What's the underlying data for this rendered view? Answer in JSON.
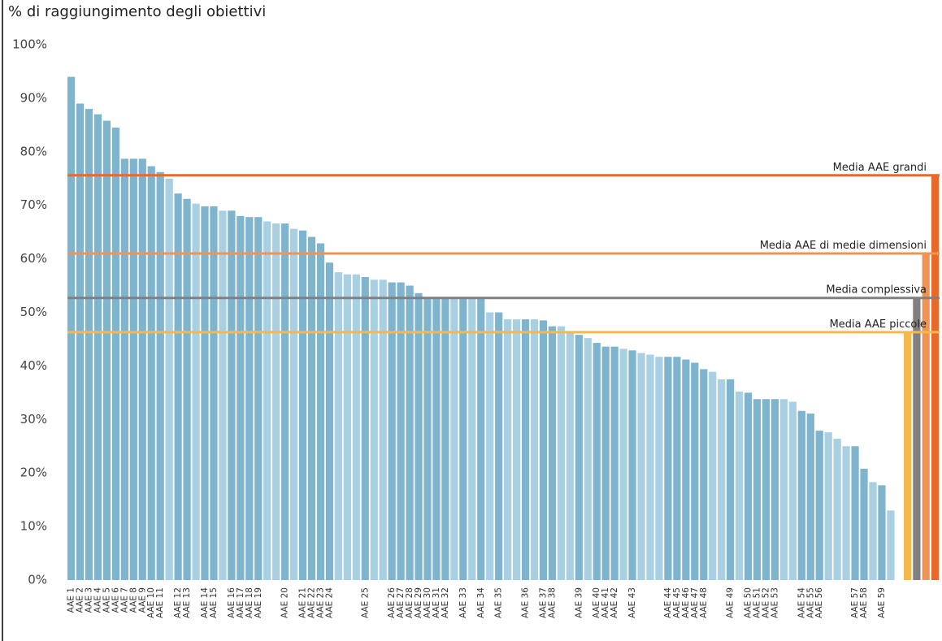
{
  "chart_data": {
    "type": "bar",
    "title": "% di raggiungimento degli obiettivi",
    "categories": [
      "AAE 1",
      "AAE 2",
      "AAE 3",
      "AAE 4",
      "AAE 5",
      "AAE 6",
      "AAE 7",
      "AAE 8",
      "AAE 9",
      "AAE 10",
      "AAE 11",
      null,
      "AAE 12",
      "AAE 13",
      null,
      "AAE 14",
      "AAE 15",
      null,
      "AAE 16",
      "AAE 17",
      "AAE 18",
      "AAE 19",
      null,
      null,
      "AAE 20",
      null,
      "AAE 21",
      "AAE 22",
      "AAE 23",
      "AAE 24",
      null,
      null,
      null,
      "AAE 25",
      null,
      null,
      "AAE 26",
      "AAE 27",
      "AAE 28",
      "AAE 29",
      "AAE 30",
      "AAE 31",
      "AAE 32",
      null,
      "AAE 33",
      null,
      "AAE 34",
      null,
      "AAE 35",
      null,
      null,
      "AAE 36",
      null,
      "AAE 37",
      "AAE 38",
      null,
      null,
      "AAE 39",
      null,
      "AAE 40",
      "AAE 41",
      "AAE 42",
      null,
      "AAE 43",
      null,
      null,
      null,
      "AAE 44",
      "AAE 45",
      "AAE 46",
      "AAE 47",
      "AAE 48",
      null,
      null,
      "AAE 49",
      null,
      "AAE 50",
      "AAE 51",
      "AAE 52",
      "AAE 53",
      null,
      null,
      "AAE 54",
      "AAE 55",
      "AAE 56",
      null,
      null,
      null,
      "AAE 57",
      "AAE 58",
      null,
      "AAE 59",
      null
    ],
    "values": [
      94,
      89,
      88,
      87,
      85.8,
      84.5,
      78.7,
      78.7,
      78.7,
      77.3,
      76.2,
      75,
      72.2,
      71.2,
      70.3,
      69.8,
      69.8,
      69,
      69,
      68,
      67.8,
      67.8,
      67,
      66.6,
      66.6,
      65.6,
      65.3,
      64.1,
      62.9,
      59.3,
      57.5,
      57.1,
      57.1,
      56.6,
      56.1,
      56.1,
      55.6,
      55.6,
      55,
      53.6,
      52.6,
      52.6,
      52.6,
      52.6,
      52.6,
      52.6,
      52.6,
      50,
      50,
      48.7,
      48.7,
      48.7,
      48.7,
      48.5,
      47.4,
      47.4,
      46.2,
      45.8,
      45.2,
      44.3,
      43.6,
      43.6,
      43.2,
      42.9,
      42.4,
      42.1,
      41.7,
      41.7,
      41.7,
      41.2,
      40.6,
      39.4,
      38.9,
      37.5,
      37.5,
      35.2,
      35,
      33.8,
      33.8,
      33.8,
      33.8,
      33.3,
      31.6,
      31.1,
      27.9,
      27.6,
      26.4,
      25,
      25,
      20.8,
      18.3,
      17.7,
      13
    ],
    "color": "#7fb4cf",
    "color_unlabeled": "#a9cfe2",
    "averages": [
      {
        "name": "Media AAE piccole",
        "value": 46.3,
        "color": "#f5b84a"
      },
      {
        "name": "Media complessiva",
        "value": 52.7,
        "color": "#808080"
      },
      {
        "name": "Media AAE di medie dimensioni",
        "value": 61,
        "color": "#ef9455"
      },
      {
        "name": "Media AAE grandi",
        "value": 75.6,
        "color": "#e8692a"
      }
    ],
    "ylim": [
      0,
      100
    ],
    "yticks": [
      {
        "value": 0,
        "label": "0%"
      },
      {
        "value": 10,
        "label": "10%"
      },
      {
        "value": 20,
        "label": "20%"
      },
      {
        "value": 30,
        "label": "30%"
      },
      {
        "value": 40,
        "label": "40%"
      },
      {
        "value": 50,
        "label": "50%"
      },
      {
        "value": 60,
        "label": "60%"
      },
      {
        "value": 70,
        "label": "70%"
      },
      {
        "value": 80,
        "label": "80%"
      },
      {
        "value": 90,
        "label": "90%"
      },
      {
        "value": 100,
        "label": "100%"
      }
    ],
    "grid": false
  }
}
